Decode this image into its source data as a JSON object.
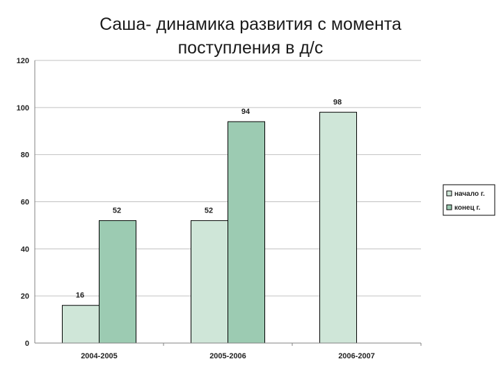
{
  "title": {
    "line1": "Саша- динамика развития с момента",
    "line2": "поступления в д/с"
  },
  "chart_data": {
    "type": "bar",
    "categories": [
      "2004-2005",
      "2005-2006",
      "2006-2007"
    ],
    "series": [
      {
        "name": "начало г.",
        "values": [
          16,
          52,
          98
        ],
        "color": "#cfe6d8"
      },
      {
        "name": "конец г.",
        "values": [
          52,
          94,
          null
        ],
        "color": "#9ccbb2"
      }
    ],
    "ylim": [
      0,
      120
    ],
    "yticks": [
      0,
      20,
      40,
      60,
      80,
      100,
      120
    ],
    "grid": true,
    "legend_position": "right",
    "data_labels": true,
    "colors": {
      "grid": "#c0c0c0",
      "bar_border": "#000000",
      "axis": "#808080"
    }
  }
}
